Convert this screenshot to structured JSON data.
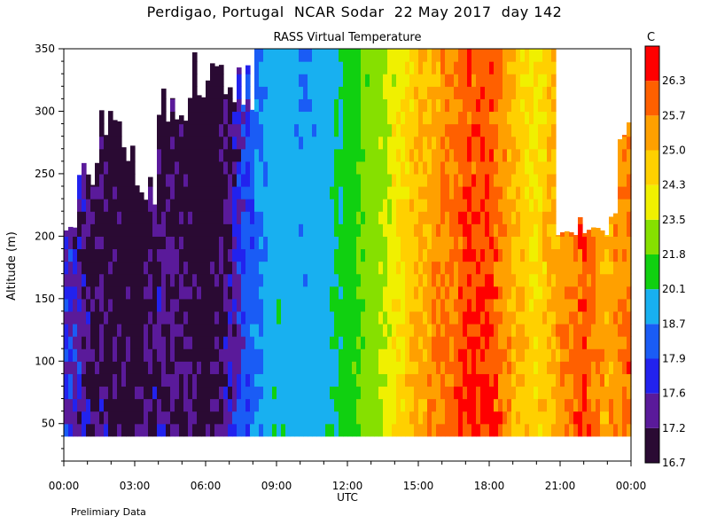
{
  "title": "Perdigao, Portugal  NCAR Sodar  22 May 2017  day 142",
  "footer": "Prelimiary Data",
  "chart_data": {
    "type": "heatmap",
    "title": "RASS Virtual Temperature",
    "xlabel": "UTC",
    "ylabel": "Altitude (m)",
    "colorbar_unit": "C",
    "xlim_hours": [
      0,
      24
    ],
    "ylim": [
      20,
      350
    ],
    "x_tick_labels": [
      "00:00",
      "03:00",
      "06:00",
      "09:00",
      "12:00",
      "15:00",
      "18:00",
      "21:00",
      "00:00"
    ],
    "y_tick_labels": [
      "50",
      "100",
      "150",
      "200",
      "250",
      "300",
      "350"
    ],
    "y_ticks": [
      50,
      100,
      150,
      200,
      250,
      300,
      350
    ],
    "data_range_altitude": [
      40,
      350
    ],
    "colorbar_levels": [
      "16.7",
      "17.2",
      "17.6",
      "17.9",
      "18.7",
      "20.1",
      "21.8",
      "23.5",
      "24.3",
      "25.0",
      "25.7",
      "26.3"
    ],
    "colorbar_colors": [
      "#2a0a33",
      "#5a1a9a",
      "#2222ee",
      "#1a5cf5",
      "#18b0f0",
      "#10d010",
      "#86e000",
      "#f0f000",
      "#ffd000",
      "#ffa000",
      "#ff6000",
      "#ff0000"
    ],
    "approx_temperature_by_hour": [
      {
        "t": 0,
        "v": 17.9
      },
      {
        "t": 1,
        "v": 17.4
      },
      {
        "t": 2,
        "v": 17.1
      },
      {
        "t": 3,
        "v": 16.9
      },
      {
        "t": 4,
        "v": 17.4
      },
      {
        "t": 5,
        "v": 17.2
      },
      {
        "t": 6,
        "v": 16.8
      },
      {
        "t": 7,
        "v": 17.4
      },
      {
        "t": 8,
        "v": 18.5
      },
      {
        "t": 9,
        "v": 20.0
      },
      {
        "t": 10,
        "v": 19.2
      },
      {
        "t": 11,
        "v": 19.5
      },
      {
        "t": 12,
        "v": 21.0
      },
      {
        "t": 13,
        "v": 22.8
      },
      {
        "t": 14,
        "v": 24.2
      },
      {
        "t": 15,
        "v": 25.2
      },
      {
        "t": 16,
        "v": 25.8
      },
      {
        "t": 17,
        "v": 26.3
      },
      {
        "t": 18,
        "v": 26.5
      },
      {
        "t": 19,
        "v": 25.2
      },
      {
        "t": 20,
        "v": 24.5
      },
      {
        "t": 21,
        "v": 25.5
      },
      {
        "t": 22,
        "v": 26.3
      },
      {
        "t": 23,
        "v": 25.2
      },
      {
        "t": 24,
        "v": 26.0
      }
    ]
  }
}
